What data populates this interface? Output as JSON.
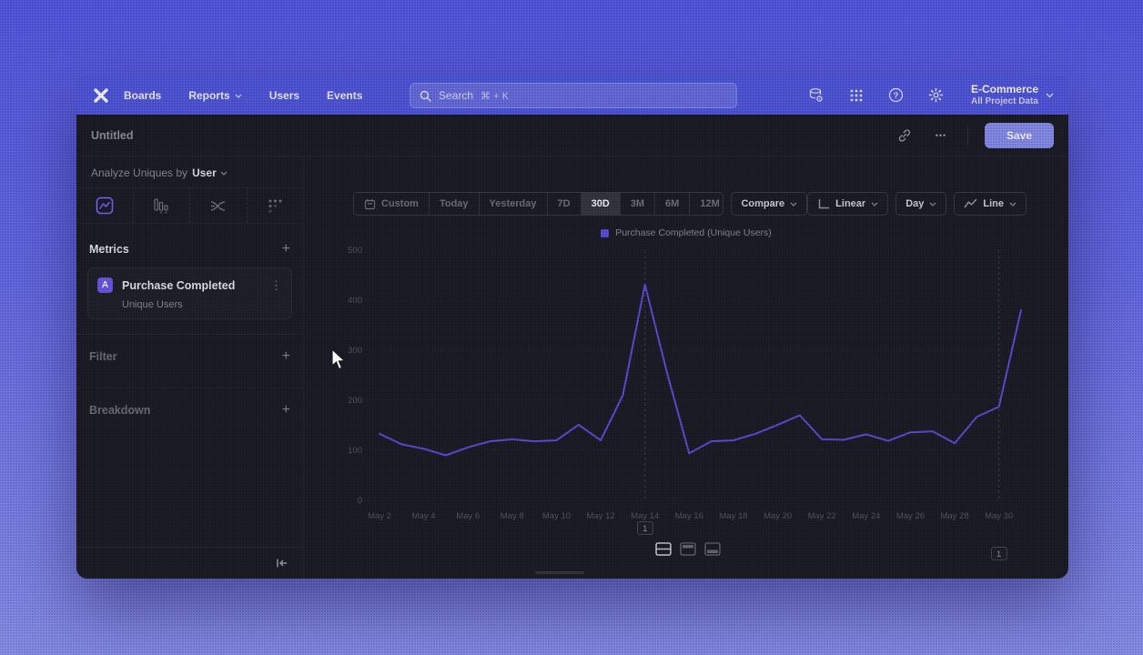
{
  "colors": {
    "accent": "#5157dc",
    "save": "#8a8fed",
    "series": "#5b4ed9",
    "badge": "#6c59e8",
    "tab-active": "#7a66ff"
  },
  "nav": {
    "links": [
      {
        "label": "Boards"
      },
      {
        "label": "Reports",
        "chevron": true
      },
      {
        "label": "Users"
      },
      {
        "label": "Events"
      }
    ],
    "search": {
      "placeholder": "Search",
      "shortcut": "⌘ + K"
    },
    "icons": [
      "data-icon",
      "apps-grid-icon",
      "help-icon",
      "gear-icon"
    ],
    "project": {
      "name": "E-Commerce",
      "scope": "All Project Data"
    }
  },
  "header": {
    "title": "Untitled",
    "save_label": "Save",
    "more_glyph": "•••"
  },
  "sidebar": {
    "analyze_prefix": "Analyze Uniques by",
    "analyze_value": "User",
    "tabs": [
      {
        "id": "insights",
        "active": true
      },
      {
        "id": "funnels",
        "active": false
      },
      {
        "id": "flows",
        "active": false
      },
      {
        "id": "retention",
        "active": false
      }
    ],
    "metrics_label": "Metrics",
    "metric": {
      "badge": "A",
      "name": "Purchase Completed",
      "subtitle": "Unique Users",
      "kebab_glyph": "⋮"
    },
    "filter_label": "Filter",
    "breakdown_label": "Breakdown",
    "plus_glyph": "+"
  },
  "controls": {
    "ranges": [
      {
        "label": "Custom",
        "icon": "calendar"
      },
      {
        "label": "Today"
      },
      {
        "label": "Yesterday"
      },
      {
        "label": "7D"
      },
      {
        "label": "30D",
        "active": true
      },
      {
        "label": "3M"
      },
      {
        "label": "6M"
      },
      {
        "label": "12M"
      }
    ],
    "compare_label": "Compare",
    "scale_label": "Linear",
    "interval_label": "Day",
    "chart_type_label": "Line"
  },
  "chart_data": {
    "type": "line",
    "legend": "Purchase Completed (Unique Users)",
    "x": [
      "May 2",
      "May 3",
      "May 4",
      "May 5",
      "May 6",
      "May 7",
      "May 8",
      "May 9",
      "May 10",
      "May 11",
      "May 12",
      "May 13",
      "May 14",
      "May 15",
      "May 16",
      "May 17",
      "May 18",
      "May 19",
      "May 20",
      "May 21",
      "May 22",
      "May 23",
      "May 24",
      "May 25",
      "May 26",
      "May 27",
      "May 28",
      "May 29",
      "May 30",
      "May 31"
    ],
    "values": [
      133,
      112,
      103,
      90,
      106,
      118,
      122,
      118,
      120,
      151,
      120,
      210,
      431,
      255,
      94,
      118,
      120,
      133,
      151,
      170,
      122,
      121,
      132,
      119,
      136,
      138,
      114,
      167,
      187,
      380
    ],
    "xtick_every": 2,
    "ylim": [
      0,
      500
    ],
    "yticks": [
      0,
      100,
      200,
      300,
      400,
      500
    ],
    "grid": true,
    "legend_position": "top-center",
    "annotations": [
      {
        "x": "May 14",
        "label": "1"
      },
      {
        "x": "May 30",
        "label": "1"
      }
    ]
  }
}
